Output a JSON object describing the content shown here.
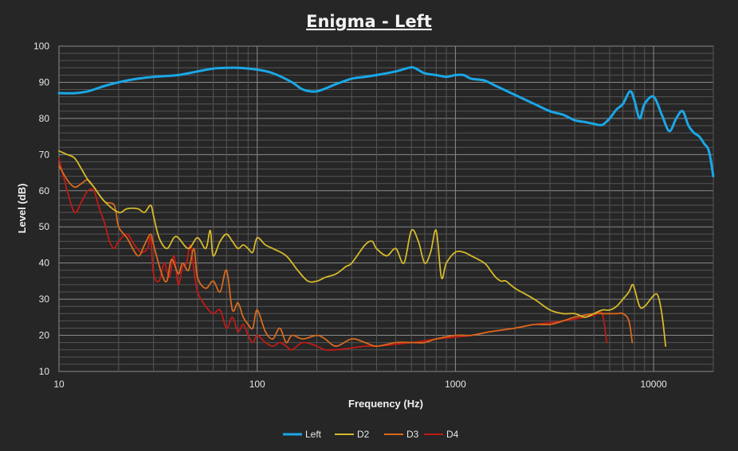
{
  "chart_data": {
    "type": "line",
    "title": "Enigma - Left",
    "xlabel": "Frequency (Hz)",
    "ylabel": "Level (dB)",
    "x_scale": "log",
    "xlim": [
      10,
      20000
    ],
    "ylim": [
      10,
      100
    ],
    "x_ticks": [
      10,
      100,
      1000,
      10000
    ],
    "x_tick_labels": [
      "10",
      "100",
      "1000",
      "10000"
    ],
    "y_ticks": [
      10,
      20,
      30,
      40,
      50,
      60,
      70,
      80,
      90,
      100
    ],
    "y_tick_labels": [
      "10",
      "20",
      "30",
      "40",
      "50",
      "60",
      "70",
      "80",
      "90",
      "100"
    ],
    "grid": true,
    "legend_position": "bottom",
    "background": "#262626",
    "series": [
      {
        "name": "Left",
        "color": "#1aa7e6",
        "x": [
          10,
          12,
          14,
          17,
          20,
          25,
          30,
          40,
          50,
          60,
          70,
          80,
          100,
          120,
          150,
          170,
          200,
          250,
          300,
          350,
          400,
          500,
          580,
          620,
          700,
          800,
          900,
          1000,
          1100,
          1200,
          1400,
          1600,
          2000,
          2500,
          3000,
          3500,
          4000,
          4500,
          5000,
          5500,
          6000,
          6500,
          7000,
          7600,
          8000,
          8500,
          9000,
          10000,
          11000,
          12000,
          13000,
          14000,
          15000,
          16000,
          17000,
          18000,
          19000,
          20000
        ],
        "values": [
          87,
          87,
          87.5,
          89,
          90,
          91,
          91.5,
          92,
          93,
          93.8,
          94,
          94,
          93.5,
          92.5,
          90,
          88,
          87.5,
          89.5,
          91,
          91.5,
          92,
          93,
          94,
          94,
          92.5,
          92,
          91.5,
          92,
          92,
          91,
          90.5,
          89,
          86.5,
          84,
          82,
          81,
          79.5,
          79,
          78.5,
          78.2,
          80,
          82.5,
          84,
          87.5,
          85,
          80,
          84,
          86,
          81,
          76.5,
          80,
          82,
          78,
          76,
          75,
          73,
          71,
          64
        ]
      },
      {
        "name": "D2",
        "color": "#d4b92a",
        "x": [
          10,
          11,
          12,
          13,
          14,
          15,
          17,
          20,
          22,
          25,
          27,
          29,
          30,
          32,
          35,
          38,
          40,
          45,
          50,
          55,
          58,
          60,
          65,
          70,
          75,
          80,
          85,
          90,
          95,
          100,
          110,
          120,
          140,
          160,
          180,
          200,
          220,
          250,
          280,
          300,
          350,
          380,
          400,
          450,
          500,
          550,
          600,
          650,
          700,
          750,
          800,
          850,
          900,
          1000,
          1100,
          1200,
          1400,
          1500,
          1600,
          1700,
          1800,
          2000,
          2500,
          3000,
          3500,
          4000,
          4500,
          5000,
          5500,
          6000,
          6500,
          7000,
          7500,
          7800,
          8000,
          8500,
          9000,
          10000,
          10500,
          11000,
          11500
        ],
        "values": [
          71,
          70,
          69,
          66,
          63,
          61,
          57,
          54,
          55,
          55,
          54,
          56,
          53,
          47,
          44,
          47,
          47,
          44,
          47,
          44,
          49,
          42,
          46,
          48,
          46,
          44,
          45,
          44,
          43,
          47,
          45,
          44,
          42,
          38,
          35,
          35,
          36,
          37,
          39,
          40,
          45,
          46,
          44,
          42,
          44,
          40,
          49,
          46,
          40,
          43,
          49,
          36,
          40,
          43,
          43,
          42,
          40,
          38,
          36,
          35,
          35,
          33,
          30,
          27,
          26,
          26,
          25,
          26,
          27,
          27,
          28,
          30,
          32,
          34,
          33,
          28,
          28,
          31,
          31,
          26,
          17
        ]
      },
      {
        "name": "D3",
        "color": "#d9691e",
        "x": [
          10,
          11,
          12,
          13,
          14,
          15,
          17,
          19,
          20,
          22,
          25,
          27,
          29,
          30,
          33,
          35,
          37,
          40,
          42,
          45,
          48,
          50,
          55,
          60,
          65,
          70,
          75,
          80,
          85,
          90,
          95,
          100,
          110,
          120,
          130,
          140,
          150,
          170,
          200,
          220,
          250,
          300,
          350,
          400,
          500,
          600,
          700,
          800,
          1000,
          1200,
          1500,
          2000,
          2500,
          3000,
          3500,
          4000,
          5000,
          5500,
          6000,
          6500,
          7000,
          7500,
          7800
        ],
        "values": [
          67,
          63,
          61,
          62,
          63,
          61,
          57,
          56,
          50,
          47,
          42,
          45,
          48,
          45,
          37,
          35,
          41,
          37,
          40,
          38,
          44,
          36,
          33,
          35,
          32,
          38,
          27,
          29,
          25,
          23,
          22,
          27,
          21,
          19,
          22,
          18,
          20,
          19,
          20,
          19,
          17,
          19,
          18,
          17,
          18,
          18,
          18,
          19,
          20,
          20,
          21,
          22,
          23,
          23,
          24,
          25,
          26,
          26,
          26,
          26,
          26,
          24,
          18
        ]
      },
      {
        "name": "D4",
        "color": "#c01a16",
        "x": [
          10,
          11,
          12,
          13,
          14,
          15,
          16,
          17,
          18,
          19,
          20,
          22,
          24,
          26,
          28,
          29,
          30,
          32,
          34,
          36,
          38,
          40,
          42,
          44,
          46,
          48,
          50,
          55,
          60,
          65,
          70,
          75,
          80,
          85,
          90,
          95,
          100,
          110,
          120,
          130,
          140,
          150,
          170,
          200,
          220,
          250,
          300,
          350,
          400,
          500,
          600,
          700,
          800,
          1000,
          1200,
          1500,
          2000,
          2500,
          3000,
          3500,
          4000,
          4500,
          5000,
          5500,
          5800
        ],
        "values": [
          69,
          60,
          54,
          57,
          60,
          60,
          55,
          51,
          46,
          44,
          46,
          48,
          45,
          43,
          44,
          47,
          37,
          35,
          40,
          36,
          42,
          34,
          39,
          40,
          45,
          38,
          32,
          28,
          26,
          27,
          22,
          25,
          21,
          23,
          20,
          18,
          20,
          18,
          17,
          18,
          17,
          16,
          18,
          17,
          16,
          16,
          16.5,
          17,
          17,
          17.5,
          18,
          18.5,
          19,
          19.5,
          20,
          21,
          22,
          23,
          23.5,
          24,
          24.5,
          25,
          25.5,
          26,
          18
        ]
      }
    ]
  }
}
